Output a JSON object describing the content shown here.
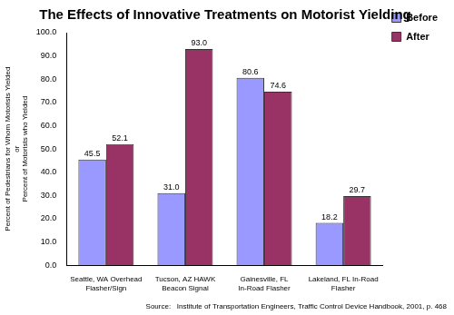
{
  "chart_data": {
    "type": "bar",
    "title": "The Effects of Innovative Treatments on Motorist Yielding",
    "y_label": [
      "Percent of Pedestrians for Whom Motorists Yielded",
      "or",
      "Percent of Motorists who Yielded"
    ],
    "source": "Source:   Institute of Transportation Engineers, Traffic Control Device Handbook, 2001, p. 468",
    "categories": [
      "Seattle, WA Overhead Flasher/Sign",
      "Tucson, AZ HAWK Beacon Signal",
      "Gainesville, FL In-Road Flasher",
      "Lakeland, FL In-Road Flasher"
    ],
    "series": [
      {
        "name": "Before",
        "color": "#9999ff",
        "values": [
          45.5,
          31.0,
          80.6,
          18.2
        ],
        "value_labels": [
          "45.5",
          "31.0",
          "80.6",
          "18.2"
        ]
      },
      {
        "name": "After",
        "color": "#993366",
        "values": [
          52.1,
          93.0,
          74.6,
          29.7
        ],
        "value_labels": [
          "52.1",
          "93.0",
          "74.6",
          "29.7"
        ]
      }
    ],
    "ylim": [
      0,
      100
    ],
    "yticks": [
      {
        "value": 0,
        "label": "0.0"
      },
      {
        "value": 10,
        "label": "10.0"
      },
      {
        "value": 20,
        "label": "20.0"
      },
      {
        "value": 30,
        "label": "30.0"
      },
      {
        "value": 40,
        "label": "40.0"
      },
      {
        "value": 50,
        "label": "50.0"
      },
      {
        "value": 60,
        "label": "60.0"
      },
      {
        "value": 70,
        "label": "70.0"
      },
      {
        "value": 80,
        "label": "80.0"
      },
      {
        "value": 90,
        "label": "90.0"
      },
      {
        "value": 100,
        "label": "100.0"
      }
    ],
    "grid": false,
    "legend": "right",
    "data_labels": true
  }
}
